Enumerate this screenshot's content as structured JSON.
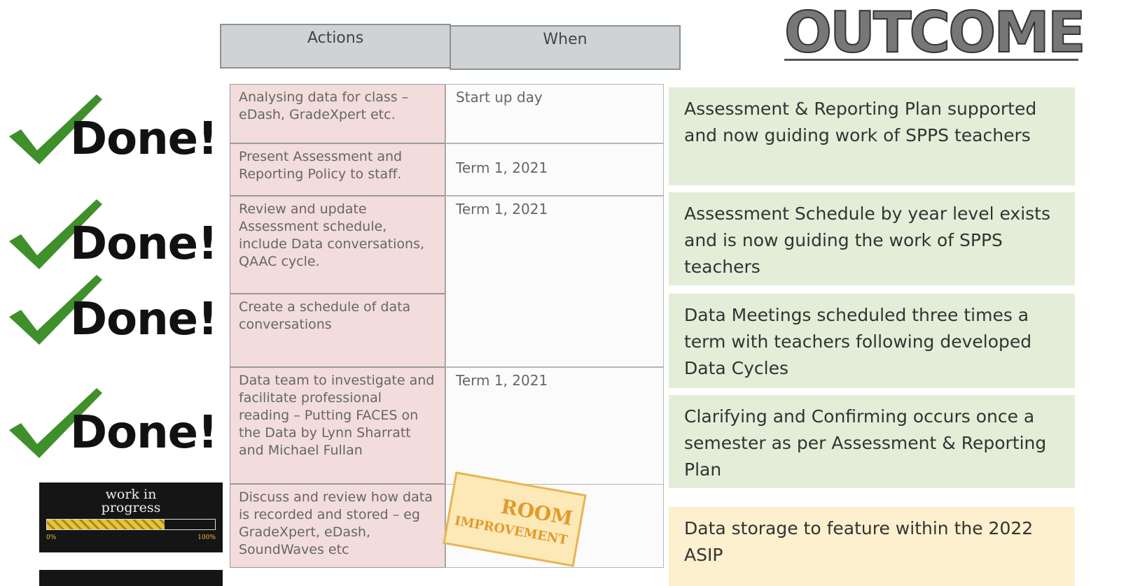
{
  "header": {
    "outcome": "OUTCOME"
  },
  "table": {
    "headers": [
      "Actions",
      "When"
    ],
    "rows": [
      {
        "action": "Analysing data for class – eDash, GradeXpert etc.",
        "when": "Start up day"
      },
      {
        "action": "Present Assessment and Reporting Policy to staff.",
        "when": "Term 1, 2021"
      },
      {
        "action": "Review and update Assessment schedule, include Data conversations, QAAC cycle.",
        "when": "Term 1, 2021"
      },
      {
        "action": "Create a schedule of data conversations"
      },
      {
        "action": "Data team to investigate and facilitate professional reading – Putting FACES on the Data by Lynn Sharratt and Michael Fullan",
        "when": "Term 1, 2021"
      },
      {
        "action": "Discuss and review how data is recorded and stored – eg GradeXpert, eDash, SoundWaves etc"
      }
    ]
  },
  "done": [
    "Done!",
    "Done!",
    "Done!",
    "Done!"
  ],
  "progress": {
    "label": "work in progress",
    "min": "0%",
    "max": "100%"
  },
  "stamp": [
    "ROOM",
    "IMPROVEMENT"
  ],
  "outcomes": [
    {
      "text": "Assessment & Reporting Plan supported and now guiding work of SPPS teachers",
      "color": "green"
    },
    {
      "text": "Assessment Schedule by year level exists and is now guiding the work of SPPS teachers",
      "color": "green"
    },
    {
      "text": "Data Meetings scheduled three times a term with teachers following developed Data Cycles",
      "color": "green"
    },
    {
      "text": "Clarifying and Confirming occurs once a semester as per Assessment & Reporting Plan",
      "color": "green"
    },
    {
      "text": "Data storage to feature within the 2022 ASIP",
      "color": "yellow"
    }
  ]
}
